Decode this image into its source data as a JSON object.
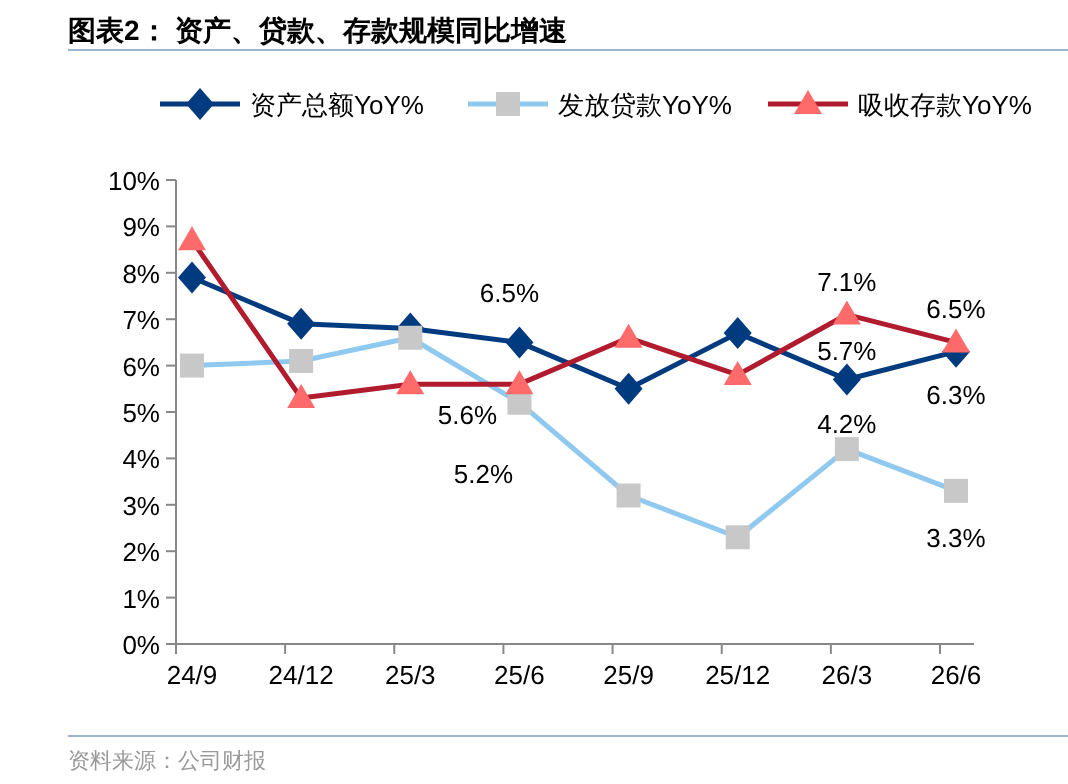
{
  "chart_data": {
    "type": "line",
    "title": "图表2：  资产、贷款、存款规模同比增速",
    "categories": [
      "24/9",
      "24/12",
      "25/3",
      "25/6",
      "25/9",
      "25/12",
      "26/3",
      "26/6"
    ],
    "series": [
      {
        "name": "资产总额YoY%",
        "color": "#003b7f",
        "marker": "diamond",
        "values": [
          7.9,
          6.9,
          6.8,
          6.5,
          5.5,
          6.7,
          5.7,
          6.3
        ],
        "value_labels": [
          null,
          null,
          null,
          "6.5%",
          null,
          null,
          "5.7%",
          "6.3%"
        ]
      },
      {
        "name": "发放贷款YoY%",
        "color": "#8fc9ef",
        "marker": "square",
        "values": [
          6.0,
          6.1,
          6.6,
          5.2,
          3.2,
          2.3,
          4.2,
          3.3
        ],
        "value_labels": [
          null,
          null,
          null,
          "5.2%",
          null,
          null,
          "4.2%",
          "3.3%"
        ]
      },
      {
        "name": "吸收存款YoY%",
        "color": "#b01c2e",
        "marker": "triangle",
        "values": [
          8.7,
          5.3,
          5.6,
          5.6,
          6.6,
          5.8,
          7.1,
          6.5
        ],
        "value_labels": [
          null,
          null,
          null,
          "5.6%",
          null,
          null,
          "7.1%",
          "6.5%"
        ]
      }
    ],
    "ylim": [
      0,
      10
    ],
    "yticks": [
      {
        "value": 0,
        "label": "0%"
      },
      {
        "value": 1,
        "label": "1%"
      },
      {
        "value": 2,
        "label": "2%"
      },
      {
        "value": 3,
        "label": "3%"
      },
      {
        "value": 4,
        "label": "4%"
      },
      {
        "value": 5,
        "label": "5%"
      },
      {
        "value": 6,
        "label": "6%"
      },
      {
        "value": 7,
        "label": "7%"
      },
      {
        "value": 8,
        "label": "8%"
      },
      {
        "value": 9,
        "label": "9%"
      },
      {
        "value": 10,
        "label": "10%"
      }
    ],
    "legend": "top",
    "grid": false,
    "annotations": [
      "资料来源：公司财报"
    ]
  }
}
